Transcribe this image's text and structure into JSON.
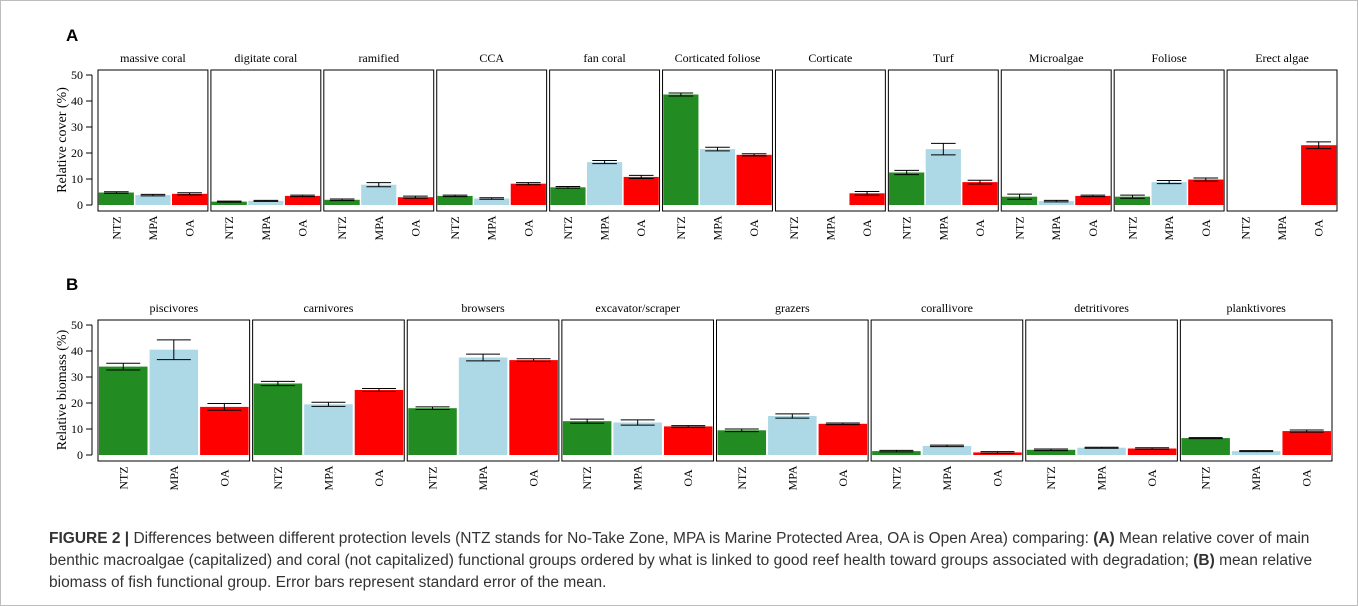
{
  "colors": {
    "NTZ": "#228b22",
    "MPA": "#add8e6",
    "OA": "#ff0000"
  },
  "chart_data": [
    {
      "type": "bar",
      "panel": "A",
      "ylabel": "Relative cover (%)",
      "ylim": [
        0,
        50
      ],
      "yticks": [
        0,
        10,
        20,
        30,
        40,
        50
      ],
      "categories": [
        "NTZ",
        "MPA",
        "OA"
      ],
      "facets": [
        {
          "title": "massive coral",
          "values": [
            4.8,
            3.8,
            4.3
          ],
          "se": [
            0.3,
            0.3,
            0.4
          ]
        },
        {
          "title": "digitate coral",
          "values": [
            1.3,
            1.6,
            3.5
          ],
          "se": [
            0.2,
            0.2,
            0.3
          ]
        },
        {
          "title": "ramified",
          "values": [
            2.0,
            7.8,
            3.0
          ],
          "se": [
            0.3,
            0.8,
            0.4
          ]
        },
        {
          "title": "CCA",
          "values": [
            3.5,
            2.5,
            8.2
          ],
          "se": [
            0.3,
            0.3,
            0.4
          ]
        },
        {
          "title": "fan coral",
          "values": [
            6.8,
            16.5,
            10.8
          ],
          "se": [
            0.3,
            0.6,
            0.6
          ]
        },
        {
          "title": "Corticated foliose",
          "values": [
            42.5,
            21.5,
            19.3
          ],
          "se": [
            0.6,
            0.7,
            0.4
          ]
        },
        {
          "title": "Corticate",
          "values": [
            0,
            0,
            4.5
          ],
          "se": [
            0,
            0,
            0.7
          ]
        },
        {
          "title": "Turf",
          "values": [
            12.5,
            21.5,
            8.8
          ],
          "se": [
            0.8,
            2.2,
            0.7
          ]
        },
        {
          "title": "Microalgae",
          "values": [
            3.2,
            1.5,
            3.5
          ],
          "se": [
            1.0,
            0.3,
            0.3
          ]
        },
        {
          "title": "Foliose",
          "values": [
            3.2,
            8.8,
            9.8
          ],
          "se": [
            0.6,
            0.6,
            0.6
          ]
        },
        {
          "title": "Erect algae",
          "values": [
            0,
            0,
            23.0
          ],
          "se": [
            0,
            0,
            1.3
          ]
        }
      ]
    },
    {
      "type": "bar",
      "panel": "B",
      "ylabel": "Relative biomass (%)",
      "ylim": [
        0,
        50
      ],
      "yticks": [
        0,
        10,
        20,
        30,
        40,
        50
      ],
      "categories": [
        "NTZ",
        "MPA",
        "OA"
      ],
      "facets": [
        {
          "title": "piscivores",
          "values": [
            34.0,
            40.5,
            18.5
          ],
          "se": [
            1.3,
            3.8,
            1.3
          ]
        },
        {
          "title": "carnivores",
          "values": [
            27.5,
            19.5,
            25.0
          ],
          "se": [
            0.8,
            0.8,
            0.6
          ]
        },
        {
          "title": "browsers",
          "values": [
            18.0,
            37.5,
            36.5
          ],
          "se": [
            0.5,
            1.3,
            0.5
          ]
        },
        {
          "title": "excavator/scraper",
          "values": [
            13.0,
            12.5,
            11.0
          ],
          "se": [
            0.8,
            1.0,
            0.3
          ]
        },
        {
          "title": "grazers",
          "values": [
            9.5,
            15.0,
            12.0
          ],
          "se": [
            0.5,
            0.8,
            0.3
          ]
        },
        {
          "title": "corallivore",
          "values": [
            1.5,
            3.5,
            1.0
          ],
          "se": [
            0.3,
            0.3,
            0.3
          ]
        },
        {
          "title": "detritivores",
          "values": [
            2.0,
            2.8,
            2.5
          ],
          "se": [
            0.3,
            0.2,
            0.3
          ]
        },
        {
          "title": "planktivores",
          "values": [
            6.5,
            1.5,
            9.2
          ],
          "se": [
            0.2,
            0.2,
            0.4
          ]
        }
      ]
    }
  ],
  "caption": {
    "lead": "FIGURE 2 |",
    "text1": " Differences between different protection levels (NTZ stands for No-Take Zone, MPA is Marine Protected Area, OA is Open Area) comparing: ",
    "label_a": "(A)",
    "text2": " Mean relative cover of main benthic macroalgae (capitalized) and coral (not capitalized) functional groups ordered by what is linked to good reef health toward groups associated with degradation; ",
    "label_b": "(B)",
    "text3": " mean relative biomass of fish functional group. Error bars represent standard error of the mean."
  }
}
